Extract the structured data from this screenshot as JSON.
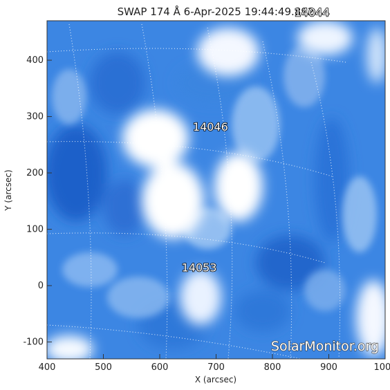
{
  "chart_data": {
    "type": "heatmap",
    "title": "SWAP 174 Å  6-Apr-2025 19:44:49.892",
    "xlabel": "X (arcsec)",
    "ylabel": "Y (arcsec)",
    "xlim": [
      400,
      1000
    ],
    "ylim": [
      -130,
      470
    ],
    "xticks": [
      400,
      500,
      600,
      700,
      800,
      900,
      1000
    ],
    "yticks": [
      -100,
      0,
      100,
      200,
      300,
      400
    ],
    "colormap": [
      "#1a5fd6",
      "#ffffff"
    ],
    "active_regions": [
      {
        "label": "14046",
        "x": 690,
        "y": 275
      },
      {
        "label": "14053",
        "x": 670,
        "y": 25
      },
      {
        "label": "14044",
        "x": 870,
        "y": 478
      }
    ],
    "watermark": "SolarMonitor.org",
    "grid": "heliographic dotted lines"
  }
}
